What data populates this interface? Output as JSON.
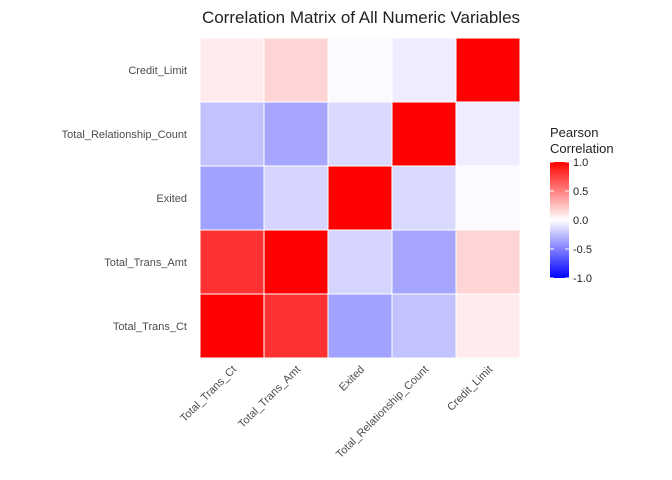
{
  "chart_data": {
    "type": "heatmap",
    "title": "Correlation Matrix of All Numeric Variables",
    "xlabel": "",
    "ylabel": "",
    "x_categories": [
      "Total_Trans_Ct",
      "Total_Trans_Amt",
      "Exited",
      "Total_Relationship_Count",
      "Credit_Limit"
    ],
    "y_categories_top_to_bottom": [
      "Credit_Limit",
      "Total_Relationship_Count",
      "Exited",
      "Total_Trans_Amt",
      "Total_Trans_Ct"
    ],
    "values": [
      [
        0.08,
        0.17,
        -0.02,
        -0.07,
        1.0
      ],
      [
        -0.24,
        -0.35,
        -0.15,
        1.0,
        -0.07
      ],
      [
        -0.37,
        -0.17,
        1.0,
        -0.15,
        -0.02
      ],
      [
        0.81,
        1.0,
        -0.17,
        -0.35,
        0.17
      ],
      [
        1.0,
        0.81,
        -0.37,
        -0.24,
        0.08
      ]
    ],
    "color_range": [
      -1,
      1
    ],
    "colors": {
      "low": "#0000ff",
      "mid": "#ffffff",
      "high": "#ff0000"
    },
    "legend": {
      "title_lines": [
        "Pearson",
        "Correlation"
      ],
      "ticks": [
        "1.0",
        "0.5",
        "0.0",
        "-0.5",
        "-1.0"
      ],
      "placement": "right"
    },
    "grid": false
  }
}
